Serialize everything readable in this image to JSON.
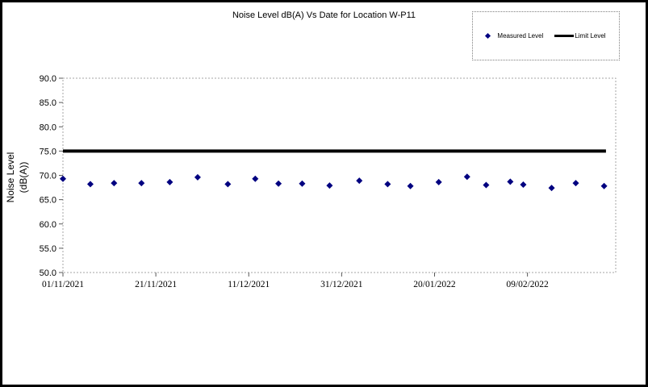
{
  "chart": {
    "title": "Noise Level dB(A) Vs Date for Location W-P11",
    "y_axis_title_line1": "Noise Level",
    "y_axis_title_line2": "(dB(A))",
    "legend": {
      "measured_label": "Measured Level",
      "limit_label": "Limit Level"
    },
    "colors": {
      "measured_marker": "#000080",
      "limit_line": "#000000",
      "plot_border": "#a6a6a6",
      "tick_mark": "#595959",
      "text": "#000000"
    }
  },
  "chart_data": {
    "type": "scatter",
    "title": "Noise Level dB(A) Vs Date for Location W-P11",
    "ylabel": "Noise Level (dB(A))",
    "ylim": [
      50.0,
      90.0
    ],
    "y_tick_step": 5.0,
    "y_tick_labels": [
      "90.0",
      "85.0",
      "80.0",
      "75.0",
      "70.0",
      "65.0",
      "60.0",
      "55.0",
      "50.0"
    ],
    "xlim_days": [
      0,
      119
    ],
    "x_ticks": [
      {
        "day": 0,
        "label": "01/11/2021"
      },
      {
        "day": 20,
        "label": "21/11/2021"
      },
      {
        "day": 40,
        "label": "11/12/2021"
      },
      {
        "day": 60,
        "label": "31/12/2021"
      },
      {
        "day": 80,
        "label": "20/01/2022"
      },
      {
        "day": 100,
        "label": "09/02/2022"
      }
    ],
    "grid": false,
    "legend_position": "top-right-outside",
    "series": [
      {
        "name": "Measured Level",
        "kind": "scatter",
        "marker": "diamond",
        "color": "#000080",
        "points": [
          {
            "day": 0.0,
            "value": 69.3
          },
          {
            "day": 5.9,
            "value": 68.2
          },
          {
            "day": 11.0,
            "value": 68.4
          },
          {
            "day": 16.9,
            "value": 68.4
          },
          {
            "day": 23.0,
            "value": 68.6
          },
          {
            "day": 29.0,
            "value": 69.6
          },
          {
            "day": 35.5,
            "value": 68.2
          },
          {
            "day": 41.4,
            "value": 69.3
          },
          {
            "day": 46.4,
            "value": 68.3
          },
          {
            "day": 51.5,
            "value": 68.3
          },
          {
            "day": 57.4,
            "value": 67.9
          },
          {
            "day": 63.8,
            "value": 68.9
          },
          {
            "day": 69.9,
            "value": 68.2
          },
          {
            "day": 74.8,
            "value": 67.8
          },
          {
            "day": 80.9,
            "value": 68.6
          },
          {
            "day": 87.0,
            "value": 69.7
          },
          {
            "day": 91.1,
            "value": 68.0
          },
          {
            "day": 96.3,
            "value": 68.7
          },
          {
            "day": 99.1,
            "value": 68.1
          },
          {
            "day": 105.2,
            "value": 67.4
          },
          {
            "day": 110.4,
            "value": 68.4
          },
          {
            "day": 116.5,
            "value": 67.8
          }
        ]
      },
      {
        "name": "Limit Level",
        "kind": "line",
        "color": "#000000",
        "value": 75.0,
        "span_days": [
          0,
          116.9
        ],
        "thickness": 4
      }
    ]
  }
}
